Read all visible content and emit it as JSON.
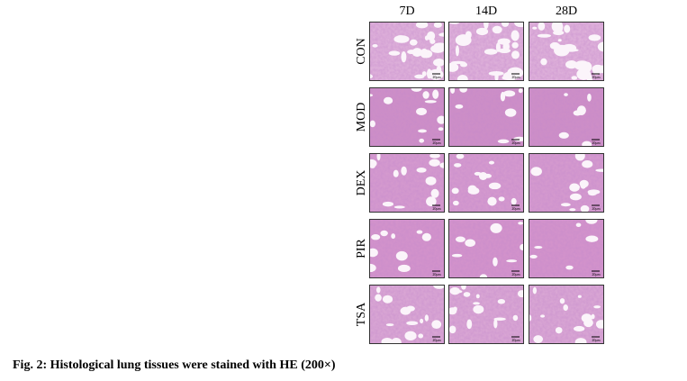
{
  "figure": {
    "columns": [
      "7D",
      "14D",
      "28D"
    ],
    "rows": [
      "CON",
      "MOD",
      "DEX",
      "PIR",
      "TSA"
    ],
    "scale_bar": "20μm",
    "caption": "Fig. 2: Histological lung tissues were stained with HE (200×)"
  }
}
